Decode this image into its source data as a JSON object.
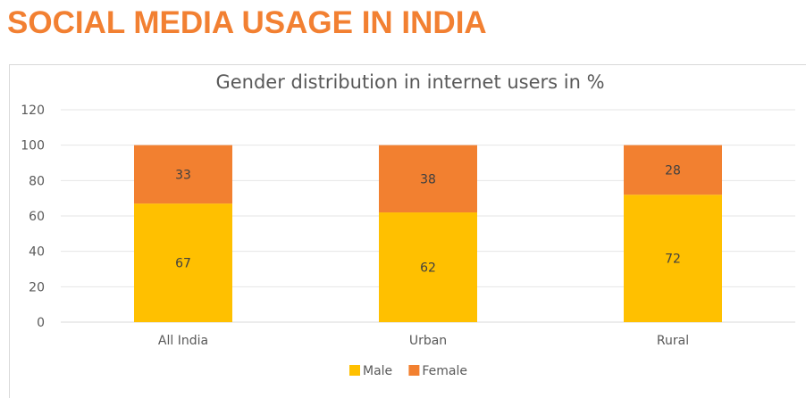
{
  "page": {
    "heading": "SOCIAL MEDIA USAGE IN INDIA",
    "heading_color": "#f28032"
  },
  "chart_data": {
    "type": "bar",
    "stacked": true,
    "title": "Gender distribution in internet users in %",
    "categories": [
      "All India",
      "Urban",
      "Rural"
    ],
    "series": [
      {
        "name": "Male",
        "values": [
          67,
          62,
          72
        ],
        "color": "#ffc000"
      },
      {
        "name": "Female",
        "values": [
          33,
          38,
          28
        ],
        "color": "#f28030"
      }
    ],
    "ylim": [
      0,
      120
    ],
    "yticks": [
      0,
      20,
      40,
      60,
      80,
      100,
      120
    ],
    "grid": true,
    "legend": "bottom-center"
  }
}
